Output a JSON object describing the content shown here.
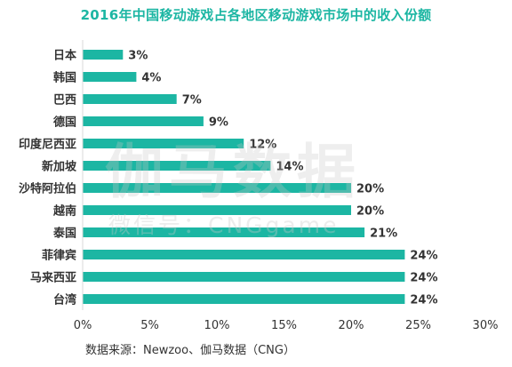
{
  "colors": {
    "accent": "#1cb6a3",
    "text": "#333333"
  },
  "chart_data": {
    "type": "bar",
    "orientation": "horizontal",
    "title": "2016年中国移动游戏占各地区移动游戏市场中的收入份额",
    "categories": [
      "日本",
      "韩国",
      "巴西",
      "德国",
      "印度尼西亚",
      "新加坡",
      "沙特阿拉伯",
      "越南",
      "泰国",
      "菲律宾",
      "马来西亚",
      "台湾"
    ],
    "values": [
      3,
      4,
      7,
      9,
      12,
      14,
      20,
      20,
      21,
      24,
      24,
      24
    ],
    "data_labels": [
      "3%",
      "4%",
      "7%",
      "9%",
      "12%",
      "14%",
      "20%",
      "20%",
      "21%",
      "24%",
      "24%",
      "24%"
    ],
    "x_ticks": [
      "0%",
      "5%",
      "10%",
      "15%",
      "20%",
      "25%",
      "30%"
    ],
    "xlim": [
      0,
      30
    ],
    "unit": "%",
    "grid": false,
    "legend": "none"
  },
  "watermark": {
    "main": "伽马数据",
    "sub": "微信号：CNGgame"
  },
  "source": "数据来源：Newzoo、伽马数据（CNG）"
}
